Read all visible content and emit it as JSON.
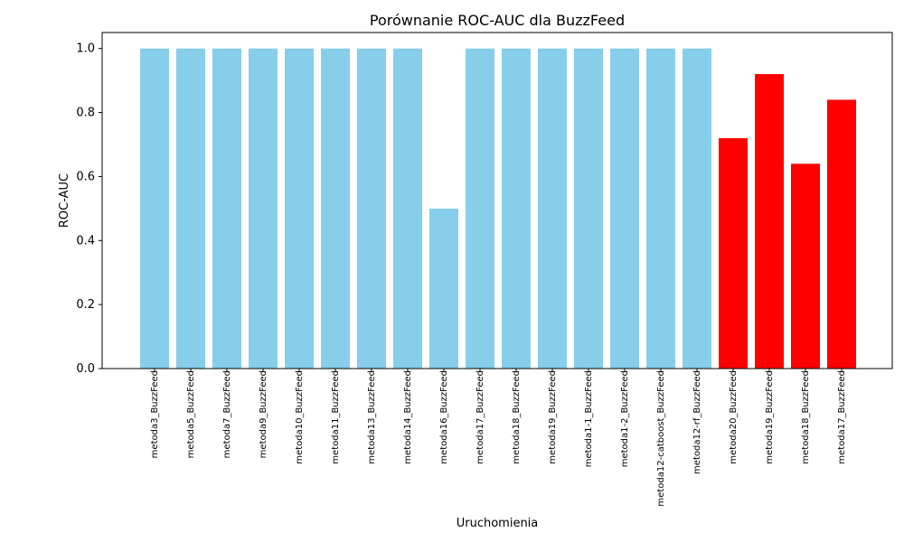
{
  "chart_data": {
    "type": "bar",
    "title": "Porównanie ROC-AUC dla BuzzFeed",
    "xlabel": "Uruchomienia",
    "ylabel": "ROC-AUC",
    "ylim": [
      0,
      1.05
    ],
    "yticks": [
      "0.0",
      "0.2",
      "0.4",
      "0.6",
      "0.8",
      "1.0"
    ],
    "ytick_values": [
      0,
      0.2,
      0.4,
      0.6,
      0.8,
      1.0
    ],
    "grid": false,
    "categories": [
      "metoda3_BuzzFeed",
      "metoda5_BuzzFeed",
      "metoda7_BuzzFeed",
      "metoda9_BuzzFeed",
      "metoda10_BuzzFeed",
      "metoda11_BuzzFeed",
      "metoda13_BuzzFeed",
      "metoda14_BuzzFeed",
      "metoda16_BuzzFeed",
      "metoda17_BuzzFeed",
      "metoda18_BuzzFeed",
      "metoda19_BuzzFeed",
      "metoda1-1_BuzzFeed",
      "metoda1-2_BuzzFeed",
      "metoda12-catboost_BuzzFeed",
      "metoda12-rf_BuzzFeed",
      "metoda20_BuzzFeed",
      "metoda19_BuzzFeed",
      "metoda18_BuzzFeed",
      "metoda17_BuzzFeed"
    ],
    "values": [
      1.0,
      1.0,
      1.0,
      1.0,
      1.0,
      1.0,
      1.0,
      1.0,
      0.5,
      1.0,
      1.0,
      1.0,
      1.0,
      1.0,
      1.0,
      1.0,
      0.72,
      0.92,
      0.64,
      0.84
    ],
    "colors": [
      "#87ceeb",
      "#87ceeb",
      "#87ceeb",
      "#87ceeb",
      "#87ceeb",
      "#87ceeb",
      "#87ceeb",
      "#87ceeb",
      "#87ceeb",
      "#87ceeb",
      "#87ceeb",
      "#87ceeb",
      "#87ceeb",
      "#87ceeb",
      "#87ceeb",
      "#87ceeb",
      "#ff0000",
      "#ff0000",
      "#ff0000",
      "#ff0000"
    ]
  }
}
